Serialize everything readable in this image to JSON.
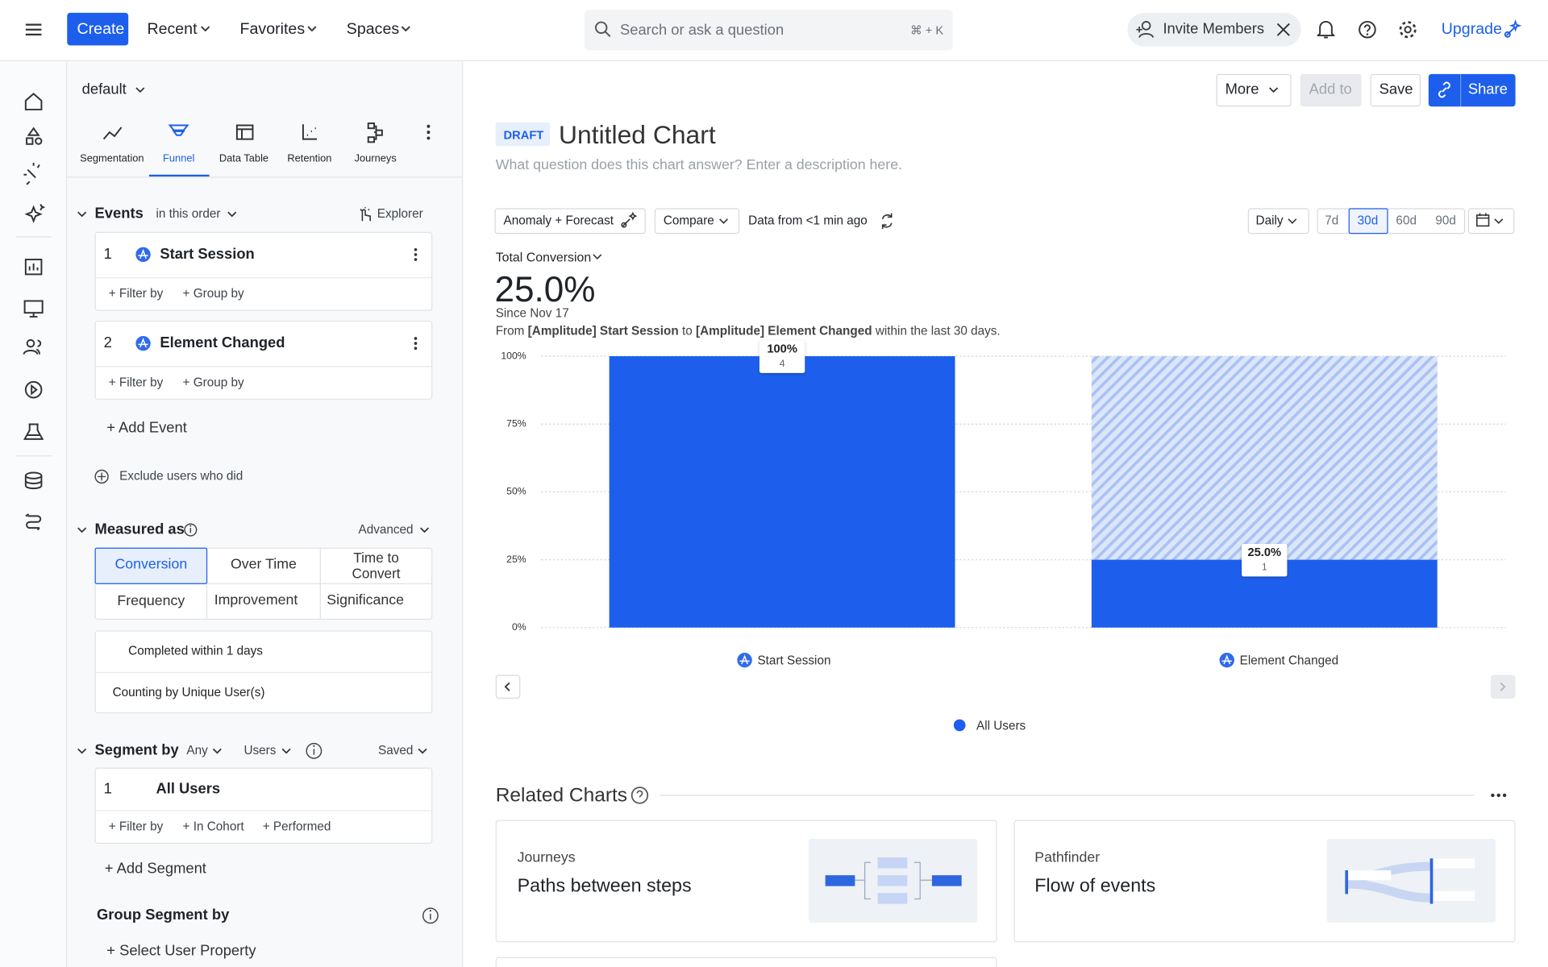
{
  "topbar": {
    "create": "Create",
    "menus": [
      "Recent",
      "Favorites",
      "Spaces"
    ],
    "search": "Search or ask a question",
    "shortcut": "⌘ + K",
    "invite": "Invite Members",
    "upgrade": "Upgrade"
  },
  "sidebar": {
    "project": "default",
    "tabs": [
      "Segmentation",
      "Funnel",
      "Data Table",
      "Retention",
      "Journeys"
    ],
    "events": {
      "title": "Events",
      "order": "in this order",
      "explorer": "Explorer",
      "items": [
        {
          "index": 1,
          "name": "Start Session"
        },
        {
          "index": 2,
          "name": "Element Changed"
        }
      ],
      "filter": "+ Filter by",
      "group": "+ Group by",
      "add": "+ Add Event",
      "exclude": "Exclude users who did"
    },
    "measured": {
      "title": "Measured as",
      "advanced": "Advanced",
      "options": [
        "Conversion",
        "Over Time",
        "Time to Convert",
        "Frequency",
        "Improvement",
        "Significance"
      ],
      "completed": "Completed within 1 days",
      "counting": "Counting by Unique User(s)"
    },
    "segment": {
      "title": "Segment by",
      "any": "Any",
      "users": "Users",
      "saved": "Saved",
      "items": [
        {
          "index": 1,
          "name": "All Users"
        }
      ],
      "filter": "+ Filter by",
      "cohort": "+ In Cohort",
      "performed": "+ Performed",
      "add": "+ Add Segment"
    },
    "group_segment": {
      "title": "Group Segment by",
      "select": "+ Select User Property"
    }
  },
  "header": {
    "more": "More",
    "add_to": "Add to",
    "save": "Save",
    "share": "Share",
    "draft": "DRAFT",
    "title": "Untitled Chart",
    "description": "What question does this chart answer? Enter a description here."
  },
  "controls": {
    "anomaly": "Anomaly + Forecast",
    "compare": "Compare",
    "freshness": "Data from <1 min ago",
    "interval": "Daily",
    "ranges": [
      "7d",
      "30d",
      "60d",
      "90d"
    ]
  },
  "summary": {
    "metric": "Total Conversion",
    "value": "25.0%",
    "since": "Since Nov 17",
    "description": [
      "From ",
      "[Amplitude] Start Session",
      " to ",
      "[Amplitude] Element Changed",
      " within the last 30 days."
    ]
  },
  "chart_data": {
    "type": "bar",
    "categories": [
      "Start Session",
      "Element Changed"
    ],
    "series": [
      {
        "name": "All Users",
        "color": "#1d5fec",
        "values": [
          100,
          25
        ],
        "value_labels": [
          "100%",
          "25.0%"
        ],
        "counts": [
          4,
          1
        ]
      }
    ],
    "ylim": [
      0,
      100
    ],
    "yticks": [
      {
        "value": 0,
        "label": "0%"
      },
      {
        "value": 25,
        "label": "25%"
      },
      {
        "value": 50,
        "label": "50%"
      },
      {
        "value": 75,
        "label": "75%"
      },
      {
        "value": 100,
        "label": "100%"
      }
    ],
    "grid": true
  },
  "related": {
    "title": "Related Charts",
    "cards": [
      {
        "kind": "Journeys",
        "title": "Paths between steps"
      },
      {
        "kind": "Pathfinder",
        "title": "Flow of events"
      }
    ]
  }
}
